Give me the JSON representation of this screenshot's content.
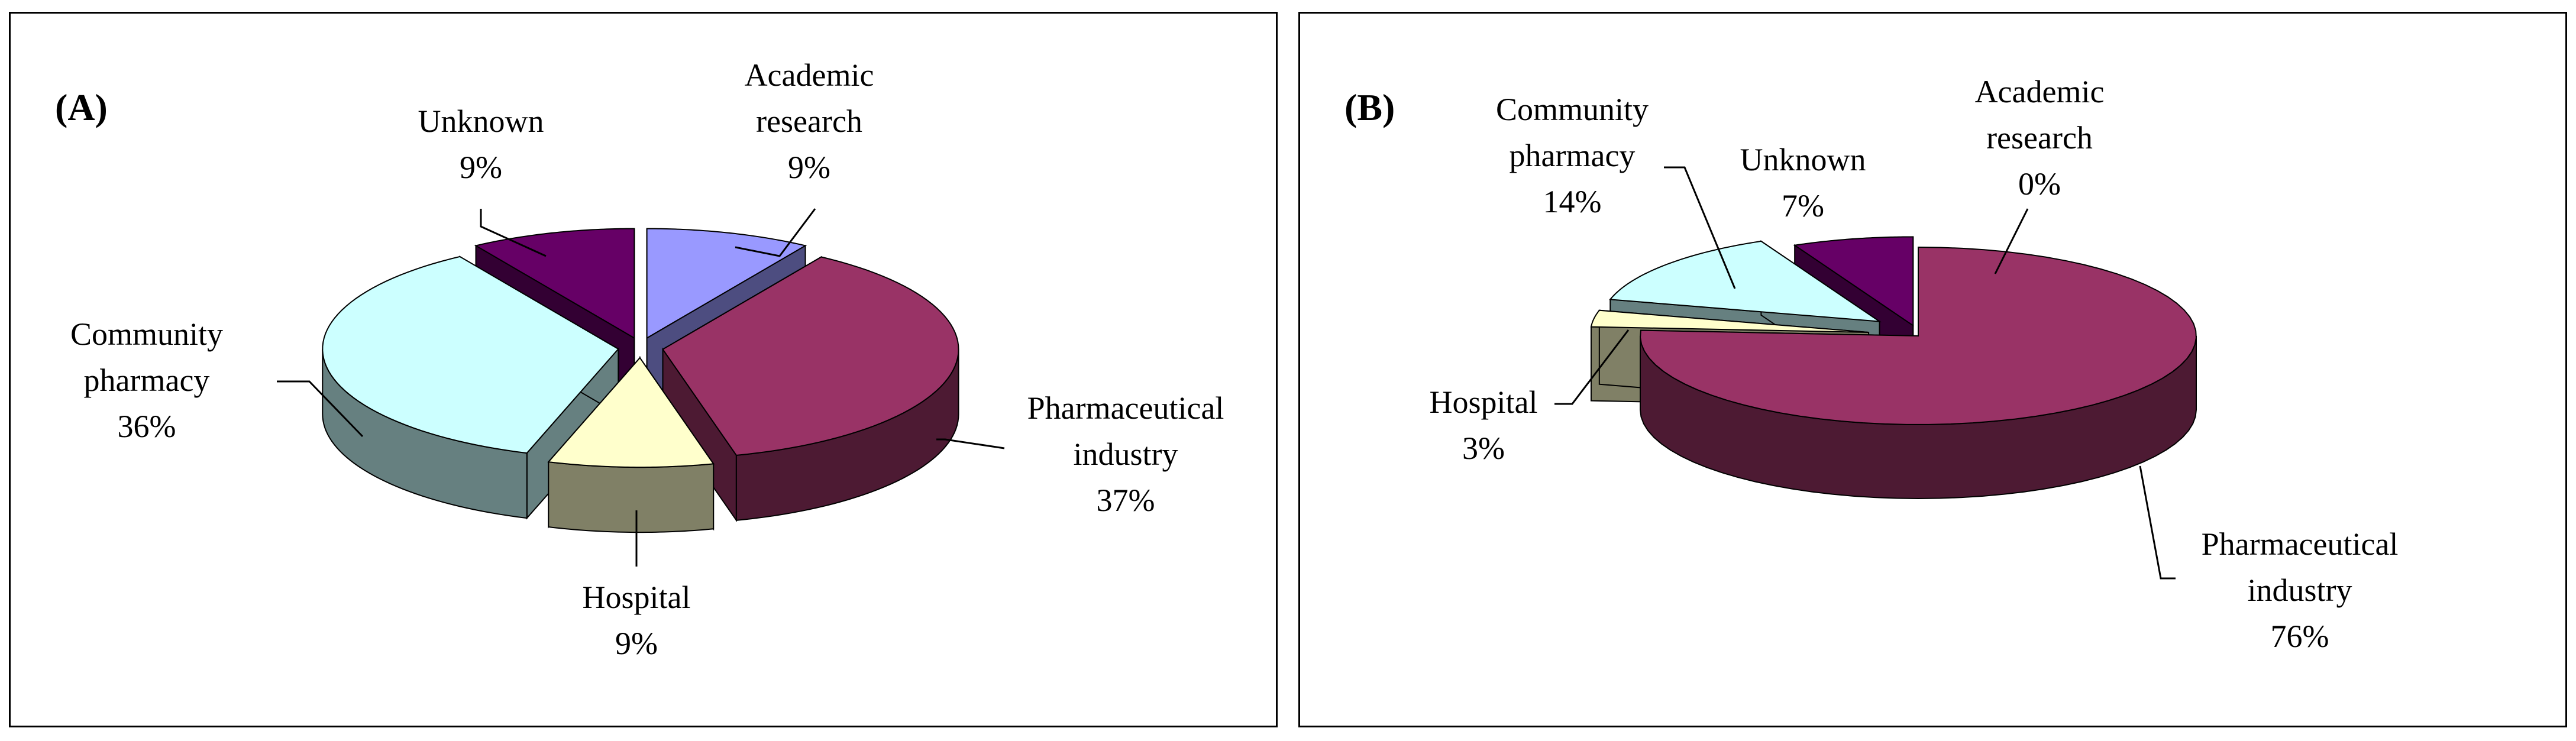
{
  "chart_data": [
    {
      "type": "pie",
      "panel_label": "(A)",
      "slices": [
        {
          "name": "Academic research",
          "line1": "Academic",
          "line2": "research",
          "value": 9,
          "label": "9%",
          "top": "#9999ff",
          "side": "#4d4d80"
        },
        {
          "name": "Pharmaceutical industry",
          "line1": "Pharmaceutical",
          "line2": "industry",
          "value": 37,
          "label": "37%",
          "top": "#993366",
          "side": "#4d1a33"
        },
        {
          "name": "Hospital",
          "line1": "Hospital",
          "line2": "",
          "value": 9,
          "label": "9%",
          "top": "#ffffcc",
          "side": "#808066"
        },
        {
          "name": "Community pharmacy",
          "line1": "Community",
          "line2": "pharmacy",
          "value": 36,
          "label": "36%",
          "top": "#ccffff",
          "side": "#668080"
        },
        {
          "name": "Unknown",
          "line1": "Unknown",
          "line2": "",
          "value": 9,
          "label": "9%",
          "top": "#660066",
          "side": "#330033"
        }
      ]
    },
    {
      "type": "pie",
      "panel_label": "(B)",
      "slices": [
        {
          "name": "Academic research",
          "line1": "Academic",
          "line2": "research",
          "value": 0,
          "label": "0%",
          "top": "#9999ff",
          "side": "#4d4d80"
        },
        {
          "name": "Pharmaceutical industry",
          "line1": "Pharmaceutical",
          "line2": "industry",
          "value": 76,
          "label": "76%",
          "top": "#993366",
          "side": "#4d1a33"
        },
        {
          "name": "Hospital",
          "line1": "Hospital",
          "line2": "",
          "value": 3,
          "label": "3%",
          "top": "#ffffcc",
          "side": "#808066"
        },
        {
          "name": "Community pharmacy",
          "line1": "Community",
          "line2": "pharmacy",
          "value": 14,
          "label": "14%",
          "top": "#ccffff",
          "side": "#668080"
        },
        {
          "name": "Unknown",
          "line1": "Unknown",
          "line2": "",
          "value": 7,
          "label": "7%",
          "top": "#660066",
          "side": "#330033"
        }
      ]
    }
  ]
}
